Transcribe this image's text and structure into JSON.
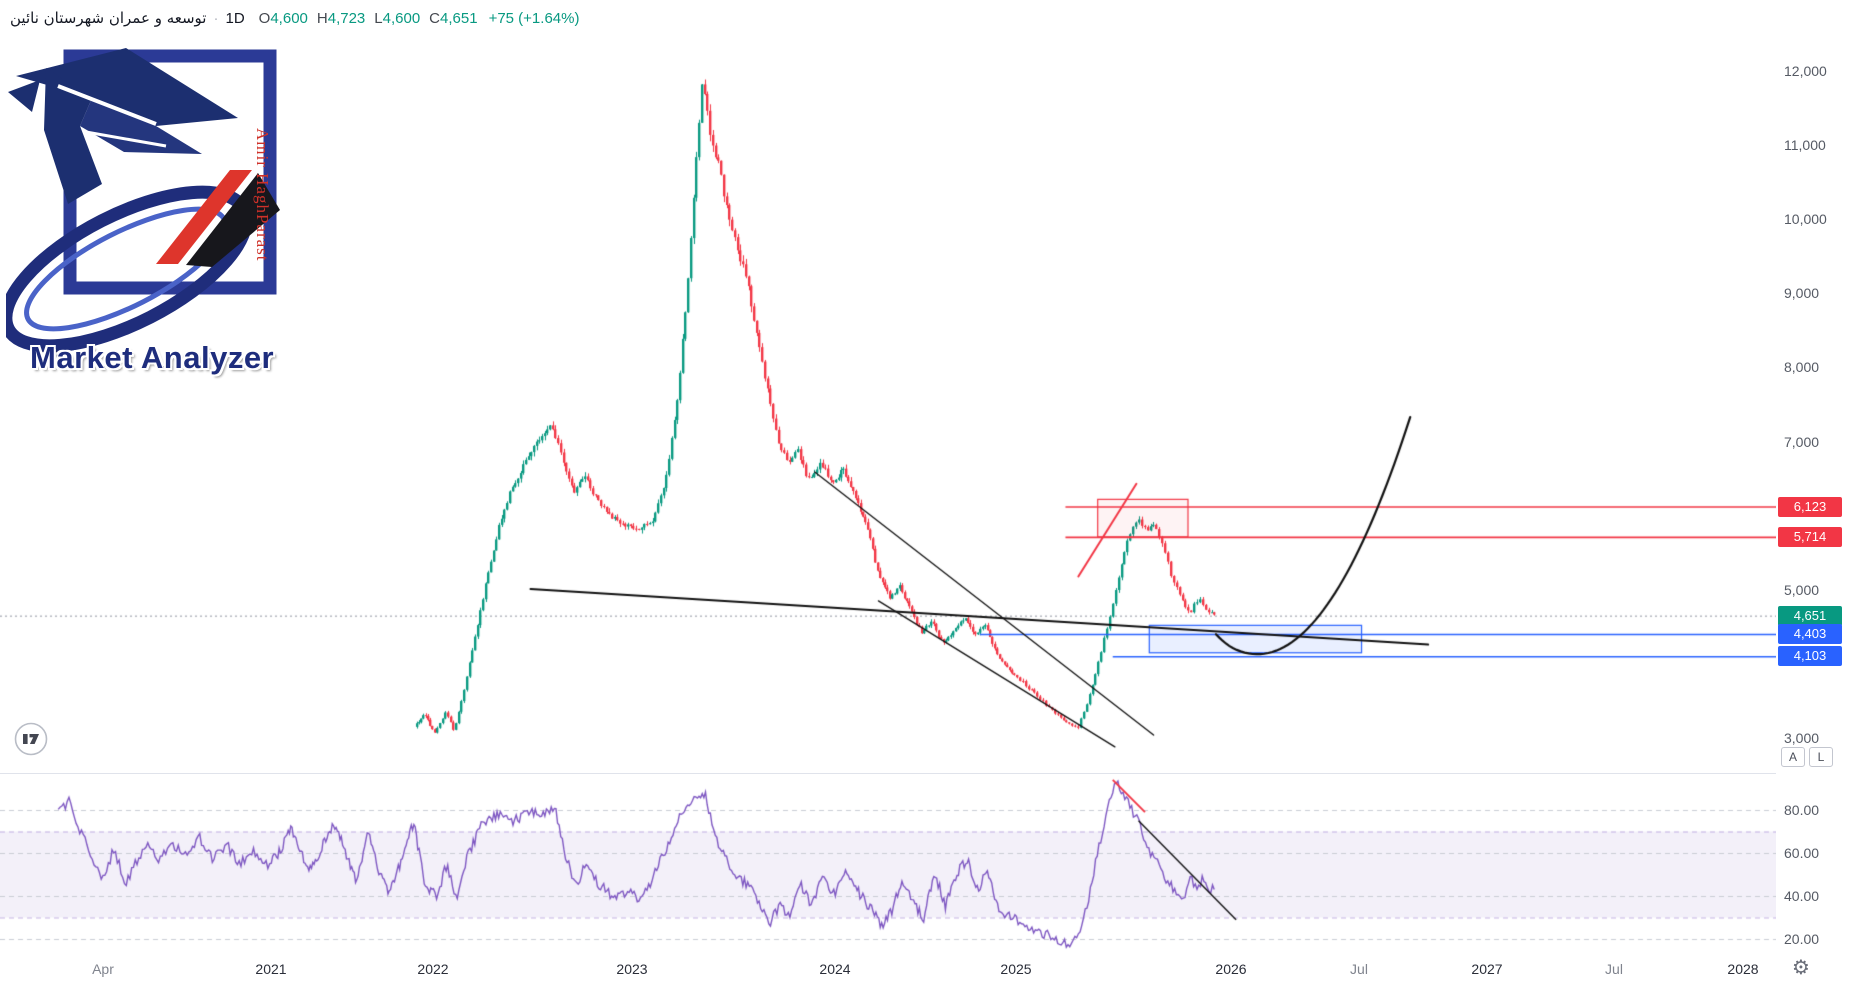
{
  "header": {
    "symbol": "توسعه و عمران شهرستان نائین",
    "separator": "·",
    "timeframe": "1D",
    "ohlc": [
      {
        "label": "O",
        "value": "4,600"
      },
      {
        "label": "H",
        "value": "4,723"
      },
      {
        "label": "L",
        "value": "4,600"
      },
      {
        "label": "C",
        "value": "4,651"
      }
    ],
    "change": "+75 (+1.64%)"
  },
  "watermark": {
    "brand": "Market Analyzer",
    "author": "Amir HaghParast"
  },
  "colors": {
    "up": "#089981",
    "down": "#f23645",
    "red": "#f23645",
    "blue": "#2962ff",
    "purple": "#7e57c2",
    "grid": "#e0e3eb",
    "axis_text": "#555a64"
  },
  "price_axis": {
    "ticks": [
      {
        "label": "12,000",
        "value": 12000
      },
      {
        "label": "11,000",
        "value": 11000
      },
      {
        "label": "10,000",
        "value": 10000
      },
      {
        "label": "9,000",
        "value": 9000
      },
      {
        "label": "8,000",
        "value": 8000
      },
      {
        "label": "7,000",
        "value": 7000
      },
      {
        "label": "5,000",
        "value": 5000
      },
      {
        "label": "3,000",
        "value": 3000
      }
    ],
    "tags": [
      {
        "label": "6,123",
        "value": 6123,
        "color": "#f23645"
      },
      {
        "label": "5,714",
        "value": 5714,
        "color": "#f23645"
      },
      {
        "label": "4,651",
        "value": 4651,
        "color": "#089981"
      },
      {
        "label": "4,403",
        "value": 4403,
        "color": "#2962ff"
      },
      {
        "label": "4,103",
        "value": 4103,
        "color": "#2962ff"
      }
    ],
    "buttons": [
      {
        "label": "A",
        "name": "auto-scale-button"
      },
      {
        "label": "L",
        "name": "log-scale-button"
      }
    ]
  },
  "rsi_axis": {
    "ticks": [
      {
        "label": "80.00",
        "value": 80
      },
      {
        "label": "60.00",
        "value": 60
      },
      {
        "label": "40.00",
        "value": 40
      },
      {
        "label": "20.00",
        "value": 20
      }
    ]
  },
  "time_axis": {
    "ticks": [
      {
        "label": "Apr",
        "t": 2020.25,
        "minor": true
      },
      {
        "label": "2021",
        "t": 2021
      },
      {
        "label": "2022",
        "t": 2022
      },
      {
        "label": "2023",
        "t": 2023
      },
      {
        "label": "2024",
        "t": 2024
      },
      {
        "label": "2025",
        "t": 2025
      },
      {
        "label": "2026",
        "t": 2026
      },
      {
        "label": "Jul",
        "t": 2026.5,
        "minor": true
      },
      {
        "label": "2027",
        "t": 2027
      },
      {
        "label": "Jul",
        "t": 2027.5,
        "minor": true
      },
      {
        "label": "2028",
        "t": 2028
      }
    ]
  },
  "footer": {
    "tradingview_logo": "tradingview-logo",
    "settings_icon": "⚙"
  },
  "chart_data": {
    "type": "candlestick",
    "indicator": "RSI",
    "x_unit": "decimal_year",
    "price_ylim": [
      2528,
      12560
    ],
    "rsi_ylim": [
      14,
      96
    ],
    "price_series": [
      [
        2021.9,
        3150
      ],
      [
        2021.96,
        3320
      ],
      [
        2022.02,
        3060
      ],
      [
        2022.08,
        3350
      ],
      [
        2022.12,
        3080
      ],
      [
        2022.17,
        3650
      ],
      [
        2022.22,
        4300
      ],
      [
        2022.28,
        5100
      ],
      [
        2022.34,
        5800
      ],
      [
        2022.4,
        6300
      ],
      [
        2022.47,
        6700
      ],
      [
        2022.55,
        7050
      ],
      [
        2022.61,
        7230
      ],
      [
        2022.66,
        6800
      ],
      [
        2022.72,
        6300
      ],
      [
        2022.77,
        6560
      ],
      [
        2022.83,
        6250
      ],
      [
        2022.9,
        6000
      ],
      [
        2022.97,
        5880
      ],
      [
        2023.05,
        5820
      ],
      [
        2023.12,
        5950
      ],
      [
        2023.18,
        6500
      ],
      [
        2023.24,
        7600
      ],
      [
        2023.29,
        9200
      ],
      [
        2023.33,
        10800
      ],
      [
        2023.36,
        11850
      ],
      [
        2023.4,
        11150
      ],
      [
        2023.44,
        10750
      ],
      [
        2023.48,
        10150
      ],
      [
        2023.53,
        9600
      ],
      [
        2023.58,
        9200
      ],
      [
        2023.63,
        8400
      ],
      [
        2023.68,
        7700
      ],
      [
        2023.73,
        7050
      ],
      [
        2023.78,
        6700
      ],
      [
        2023.83,
        6900
      ],
      [
        2023.88,
        6480
      ],
      [
        2023.94,
        6720
      ],
      [
        2024.0,
        6450
      ],
      [
        2024.06,
        6620
      ],
      [
        2024.12,
        6280
      ],
      [
        2024.19,
        5850
      ],
      [
        2024.26,
        5150
      ],
      [
        2024.32,
        4880
      ],
      [
        2024.37,
        5060
      ],
      [
        2024.43,
        4720
      ],
      [
        2024.49,
        4420
      ],
      [
        2024.55,
        4580
      ],
      [
        2024.61,
        4260
      ],
      [
        2024.67,
        4440
      ],
      [
        2024.73,
        4620
      ],
      [
        2024.79,
        4380
      ],
      [
        2024.84,
        4560
      ],
      [
        2024.89,
        4240
      ],
      [
        2024.94,
        4020
      ],
      [
        2025.02,
        3820
      ],
      [
        2025.1,
        3600
      ],
      [
        2025.18,
        3380
      ],
      [
        2025.25,
        3200
      ],
      [
        2025.3,
        3140
      ],
      [
        2025.35,
        3520
      ],
      [
        2025.4,
        4050
      ],
      [
        2025.45,
        4650
      ],
      [
        2025.5,
        5300
      ],
      [
        2025.54,
        5750
      ],
      [
        2025.58,
        5960
      ],
      [
        2025.62,
        5800
      ],
      [
        2025.66,
        5880
      ],
      [
        2025.7,
        5560
      ],
      [
        2025.74,
        5150
      ],
      [
        2025.78,
        4900
      ],
      [
        2025.82,
        4680
      ],
      [
        2025.86,
        4880
      ],
      [
        2025.9,
        4740
      ],
      [
        2025.93,
        4651
      ]
    ],
    "rsi_series": [
      [
        2020.05,
        78
      ],
      [
        2020.1,
        84
      ],
      [
        2020.15,
        70
      ],
      [
        2020.2,
        58
      ],
      [
        2020.25,
        48
      ],
      [
        2020.3,
        62
      ],
      [
        2020.35,
        45
      ],
      [
        2020.4,
        56
      ],
      [
        2020.45,
        63
      ],
      [
        2020.5,
        57
      ],
      [
        2020.55,
        65
      ],
      [
        2020.62,
        59
      ],
      [
        2020.68,
        67
      ],
      [
        2020.74,
        57
      ],
      [
        2020.8,
        64
      ],
      [
        2020.86,
        55
      ],
      [
        2020.92,
        62
      ],
      [
        2020.98,
        54
      ],
      [
        2021.05,
        60
      ],
      [
        2021.12,
        72
      ],
      [
        2021.18,
        60
      ],
      [
        2021.25,
        52
      ],
      [
        2021.32,
        64
      ],
      [
        2021.4,
        74
      ],
      [
        2021.47,
        57
      ],
      [
        2021.53,
        47
      ],
      [
        2021.6,
        72
      ],
      [
        2021.67,
        50
      ],
      [
        2021.73,
        42
      ],
      [
        2021.8,
        55
      ],
      [
        2021.88,
        74
      ],
      [
        2021.95,
        46
      ],
      [
        2022.02,
        40
      ],
      [
        2022.07,
        55
      ],
      [
        2022.12,
        38
      ],
      [
        2022.17,
        58
      ],
      [
        2022.24,
        72
      ],
      [
        2022.32,
        78
      ],
      [
        2022.4,
        74
      ],
      [
        2022.48,
        80
      ],
      [
        2022.55,
        77
      ],
      [
        2022.61,
        82
      ],
      [
        2022.66,
        60
      ],
      [
        2022.72,
        45
      ],
      [
        2022.77,
        55
      ],
      [
        2022.83,
        46
      ],
      [
        2022.9,
        40
      ],
      [
        2022.97,
        42
      ],
      [
        2023.05,
        38
      ],
      [
        2023.12,
        52
      ],
      [
        2023.18,
        65
      ],
      [
        2023.24,
        78
      ],
      [
        2023.3,
        85
      ],
      [
        2023.36,
        88
      ],
      [
        2023.4,
        70
      ],
      [
        2023.44,
        62
      ],
      [
        2023.48,
        55
      ],
      [
        2023.53,
        48
      ],
      [
        2023.58,
        44
      ],
      [
        2023.63,
        36
      ],
      [
        2023.68,
        28
      ],
      [
        2023.73,
        35
      ],
      [
        2023.78,
        30
      ],
      [
        2023.83,
        46
      ],
      [
        2023.88,
        36
      ],
      [
        2023.94,
        48
      ],
      [
        2024.0,
        41
      ],
      [
        2024.06,
        53
      ],
      [
        2024.12,
        43
      ],
      [
        2024.19,
        35
      ],
      [
        2024.26,
        26
      ],
      [
        2024.32,
        34
      ],
      [
        2024.37,
        48
      ],
      [
        2024.43,
        37
      ],
      [
        2024.49,
        30
      ],
      [
        2024.55,
        51
      ],
      [
        2024.61,
        35
      ],
      [
        2024.67,
        50
      ],
      [
        2024.73,
        57
      ],
      [
        2024.79,
        42
      ],
      [
        2024.84,
        52
      ],
      [
        2024.89,
        36
      ],
      [
        2024.94,
        32
      ],
      [
        2025.02,
        28
      ],
      [
        2025.1,
        24
      ],
      [
        2025.18,
        20
      ],
      [
        2025.25,
        18
      ],
      [
        2025.3,
        22
      ],
      [
        2025.35,
        45
      ],
      [
        2025.38,
        60
      ],
      [
        2025.42,
        78
      ],
      [
        2025.46,
        94
      ],
      [
        2025.5,
        88
      ],
      [
        2025.54,
        80
      ],
      [
        2025.58,
        72
      ],
      [
        2025.62,
        60
      ],
      [
        2025.66,
        55
      ],
      [
        2025.7,
        48
      ],
      [
        2025.74,
        42
      ],
      [
        2025.78,
        38
      ],
      [
        2025.81,
        50
      ],
      [
        2025.84,
        42
      ],
      [
        2025.87,
        48
      ],
      [
        2025.9,
        43
      ],
      [
        2025.93,
        46
      ]
    ],
    "annotations": {
      "hlines": [
        {
          "price": 6123,
          "t_start": 2025.23,
          "t_end": 2028.3,
          "color": "#f23645",
          "width": 1.6
        },
        {
          "price": 5714,
          "t_start": 2025.23,
          "t_end": 2028.3,
          "color": "#f23645",
          "width": 1.6
        },
        {
          "price": 4403,
          "t_start": 2024.8,
          "t_end": 2028.3,
          "color": "#2962ff",
          "width": 1.6
        },
        {
          "price": 4103,
          "t_start": 2025.45,
          "t_end": 2028.3,
          "color": "#2962ff",
          "width": 1.6
        }
      ],
      "price_line": {
        "price": 4651,
        "color": "#9094a0"
      },
      "trendlines": [
        {
          "from": [
            2022.49,
            5010
          ],
          "to": [
            2026.77,
            4260
          ],
          "color": "#111111",
          "width": 2
        },
        {
          "from": [
            2023.9,
            6590
          ],
          "to": [
            2025.64,
            3040
          ],
          "color": "#111111",
          "width": 1.3
        },
        {
          "from": [
            2024.24,
            4850
          ],
          "to": [
            2025.46,
            2880
          ],
          "color": "#111111",
          "width": 1.3
        },
        {
          "from": [
            2025.29,
            5180
          ],
          "to": [
            2025.56,
            6430
          ],
          "color": "#f23645",
          "width": 2
        }
      ],
      "boxes": [
        {
          "t1": 2025.38,
          "t2": 2025.8,
          "p1": 5714,
          "p2": 6220,
          "stroke": "#f23645",
          "fill": "rgba(242,54,69,0.06)"
        },
        {
          "t1": 2025.62,
          "t2": 2026.51,
          "p1": 4150,
          "p2": 4520,
          "stroke": "#2962ff",
          "fill": "rgba(41,98,255,0.10)"
        }
      ],
      "projection_curve": {
        "p0": [
          2025.93,
          4400
        ],
        "p1": [
          2026.15,
          4150
        ],
        "p2": [
          2026.7,
          7330
        ],
        "color": "#111111",
        "width": 2.2
      },
      "rsi_lines": [
        {
          "from": [
            2025.45,
            94
          ],
          "to": [
            2025.6,
            79
          ],
          "color": "#f23645",
          "width": 2
        },
        {
          "from": [
            2025.57,
            75
          ],
          "to": [
            2026.02,
            29
          ],
          "color": "#111111",
          "width": 1.4
        }
      ],
      "rsi_bands": {
        "upper": 70,
        "lower": 30
      }
    }
  }
}
